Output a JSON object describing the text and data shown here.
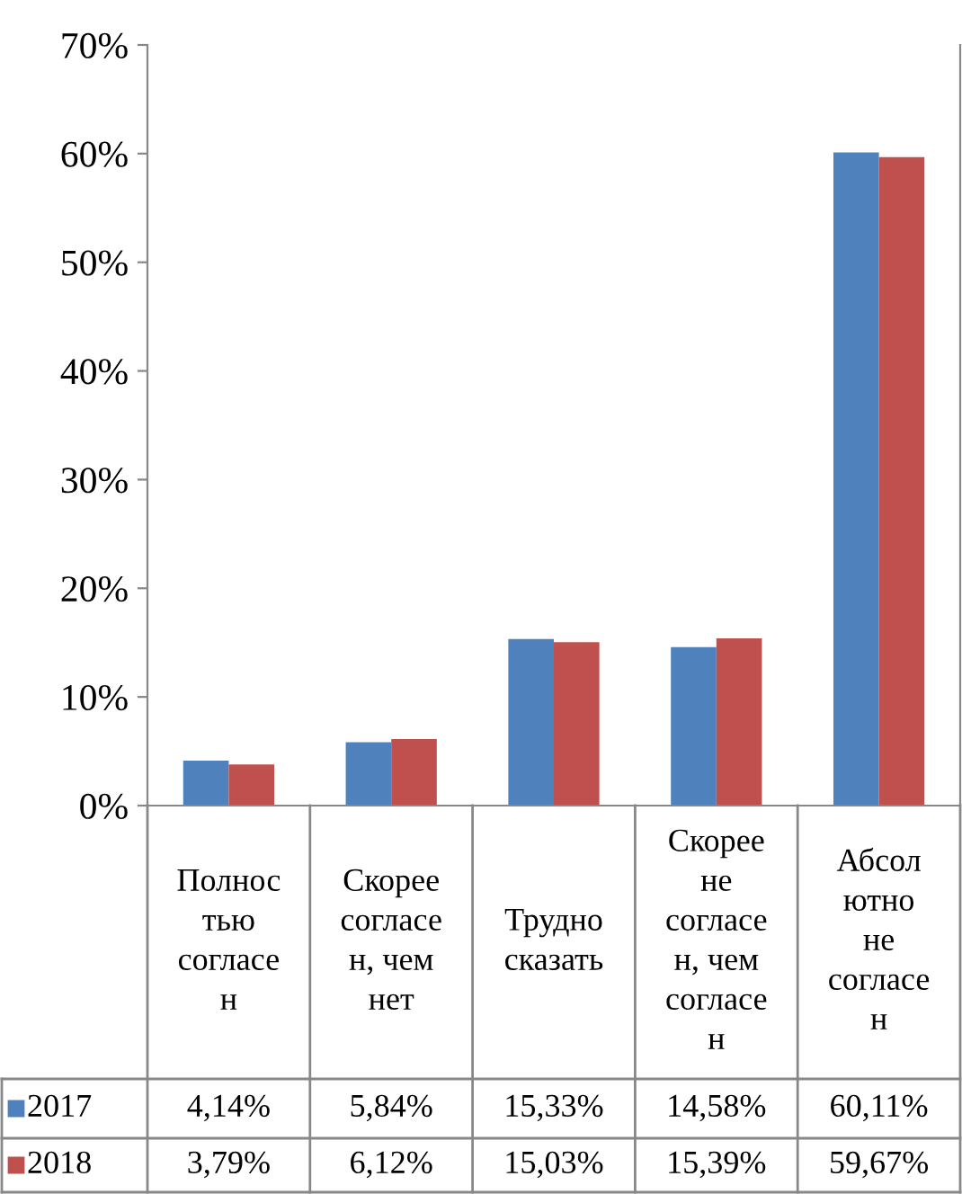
{
  "chart_data": {
    "type": "bar",
    "categories": [
      "Полнос\nтью\nсогласе\nн",
      "Скорее\nсогласе\nн, чем\nнет",
      "Трудно\nсказать",
      "Скорее\nне\nсогласе\nн, чем\nсогласе\nн",
      "Абсол\nютно\nне\nсогласе\nн"
    ],
    "series": [
      {
        "name": "2017",
        "color": "#4f81bd",
        "values": [
          4.14,
          5.84,
          15.33,
          14.58,
          60.11
        ],
        "value_labels": [
          "4,14%",
          "5,84%",
          "15,33%",
          "14,58%",
          "60,11%"
        ]
      },
      {
        "name": "2018",
        "color": "#c0504d",
        "values": [
          3.79,
          6.12,
          15.03,
          15.39,
          59.67
        ],
        "value_labels": [
          "3,79%",
          "6,12%",
          "15,03%",
          "15,39%",
          "59,67%"
        ]
      }
    ],
    "ylim": [
      0,
      70
    ],
    "yticks": [
      {
        "value": 0,
        "label": "0%"
      },
      {
        "value": 10,
        "label": "10%"
      },
      {
        "value": 20,
        "label": "20%"
      },
      {
        "value": 30,
        "label": "30%"
      },
      {
        "value": 40,
        "label": "40%"
      },
      {
        "value": 50,
        "label": "50%"
      },
      {
        "value": 60,
        "label": "60%"
      },
      {
        "value": 70,
        "label": "70%"
      }
    ],
    "legend": "bottom",
    "grid": false
  }
}
